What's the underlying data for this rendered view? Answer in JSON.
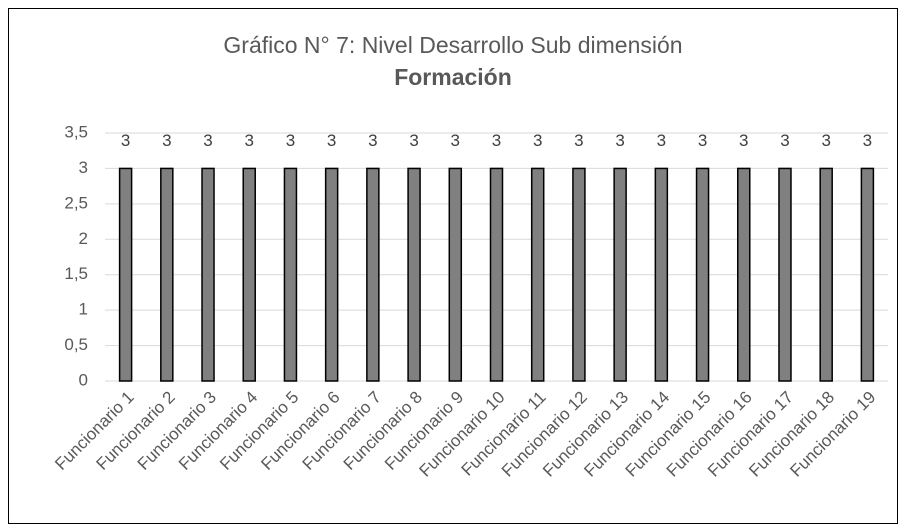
{
  "chart_data": {
    "type": "bar",
    "title": "Gráfico N° 7: Nivel Desarrollo Sub dimensión",
    "subtitle": "Formación",
    "categories": [
      "Funcionario 1",
      "Funcionario 2",
      "Funcionario 3",
      "Funcionario 4",
      "Funcionario 5",
      "Funcionario 6",
      "Funcionario 7",
      "Funcionario 8",
      "Funcionario 9",
      "Funcionario 10",
      "Funcionario 11",
      "Funcionario 12",
      "Funcionario 13",
      "Funcionario 14",
      "Funcionario 15",
      "Funcionario 16",
      "Funcionario 17",
      "Funcionario 18",
      "Funcionario 19"
    ],
    "values": [
      3,
      3,
      3,
      3,
      3,
      3,
      3,
      3,
      3,
      3,
      3,
      3,
      3,
      3,
      3,
      3,
      3,
      3,
      3
    ],
    "color": "#808080",
    "ylim": [
      0,
      3.5
    ],
    "yticks": [
      0,
      {
        "value": 0.5,
        "label": "0,5"
      },
      1,
      {
        "value": 1.5,
        "label": "1,5"
      },
      2,
      {
        "value": 2.5,
        "label": "2,5"
      },
      3,
      {
        "value": 3.5,
        "label": "3,5"
      }
    ],
    "grid": true
  }
}
